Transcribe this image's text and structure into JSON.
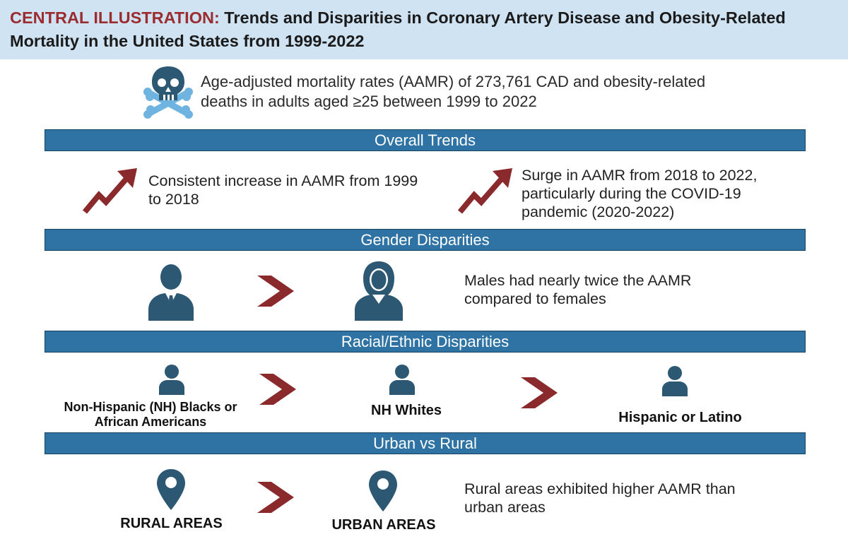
{
  "header": {
    "label": "CENTRAL ILLUSTRATION:",
    "title": " Trends and Disparities in Coronary Artery Disease and Obesity-Related Mortality in the United States from 1999-2022"
  },
  "intro": {
    "text": "Age-adjusted mortality rates (AAMR) of 273,761 CAD and obesity-related deaths in adults aged ≥25 between 1999 to 2022"
  },
  "sections": {
    "overall": {
      "title": "Overall Trends",
      "left_text": "Consistent increase in AAMR from 1999 to 2018",
      "right_text": "Surge in AAMR from 2018 to 2022, particularly during the COVID-19 pandemic (2020-2022)"
    },
    "gender": {
      "title": "Gender Disparities",
      "text": "Males had nearly twice the AAMR compared to females"
    },
    "racial": {
      "title": "Racial/Ethnic Disparities",
      "group1": "Non-Hispanic (NH) Blacks or African Americans",
      "group2": "NH Whites",
      "group3": "Hispanic or Latino"
    },
    "urban": {
      "title": "Urban vs Rural",
      "left_label": "RURAL AREAS",
      "right_label": "URBAN AREAS",
      "text": "Rural areas exhibited higher AAMR than urban areas"
    }
  },
  "colors": {
    "header_bg": "#cfe3f3",
    "label_red": "#9b2d31",
    "bar_blue": "#2e73a3",
    "icon_navy": "#2c5873",
    "icon_light_blue": "#6fb4e0",
    "arrow_red": "#8b2a2d"
  },
  "icons": {
    "intro": "skull-crossbones-icon",
    "trend": "trend-up-arrow-icon",
    "male": "male-person-icon",
    "female": "female-person-icon",
    "person": "person-icon",
    "chevron": "chevron-right-icon",
    "location": "location-pin-icon"
  }
}
